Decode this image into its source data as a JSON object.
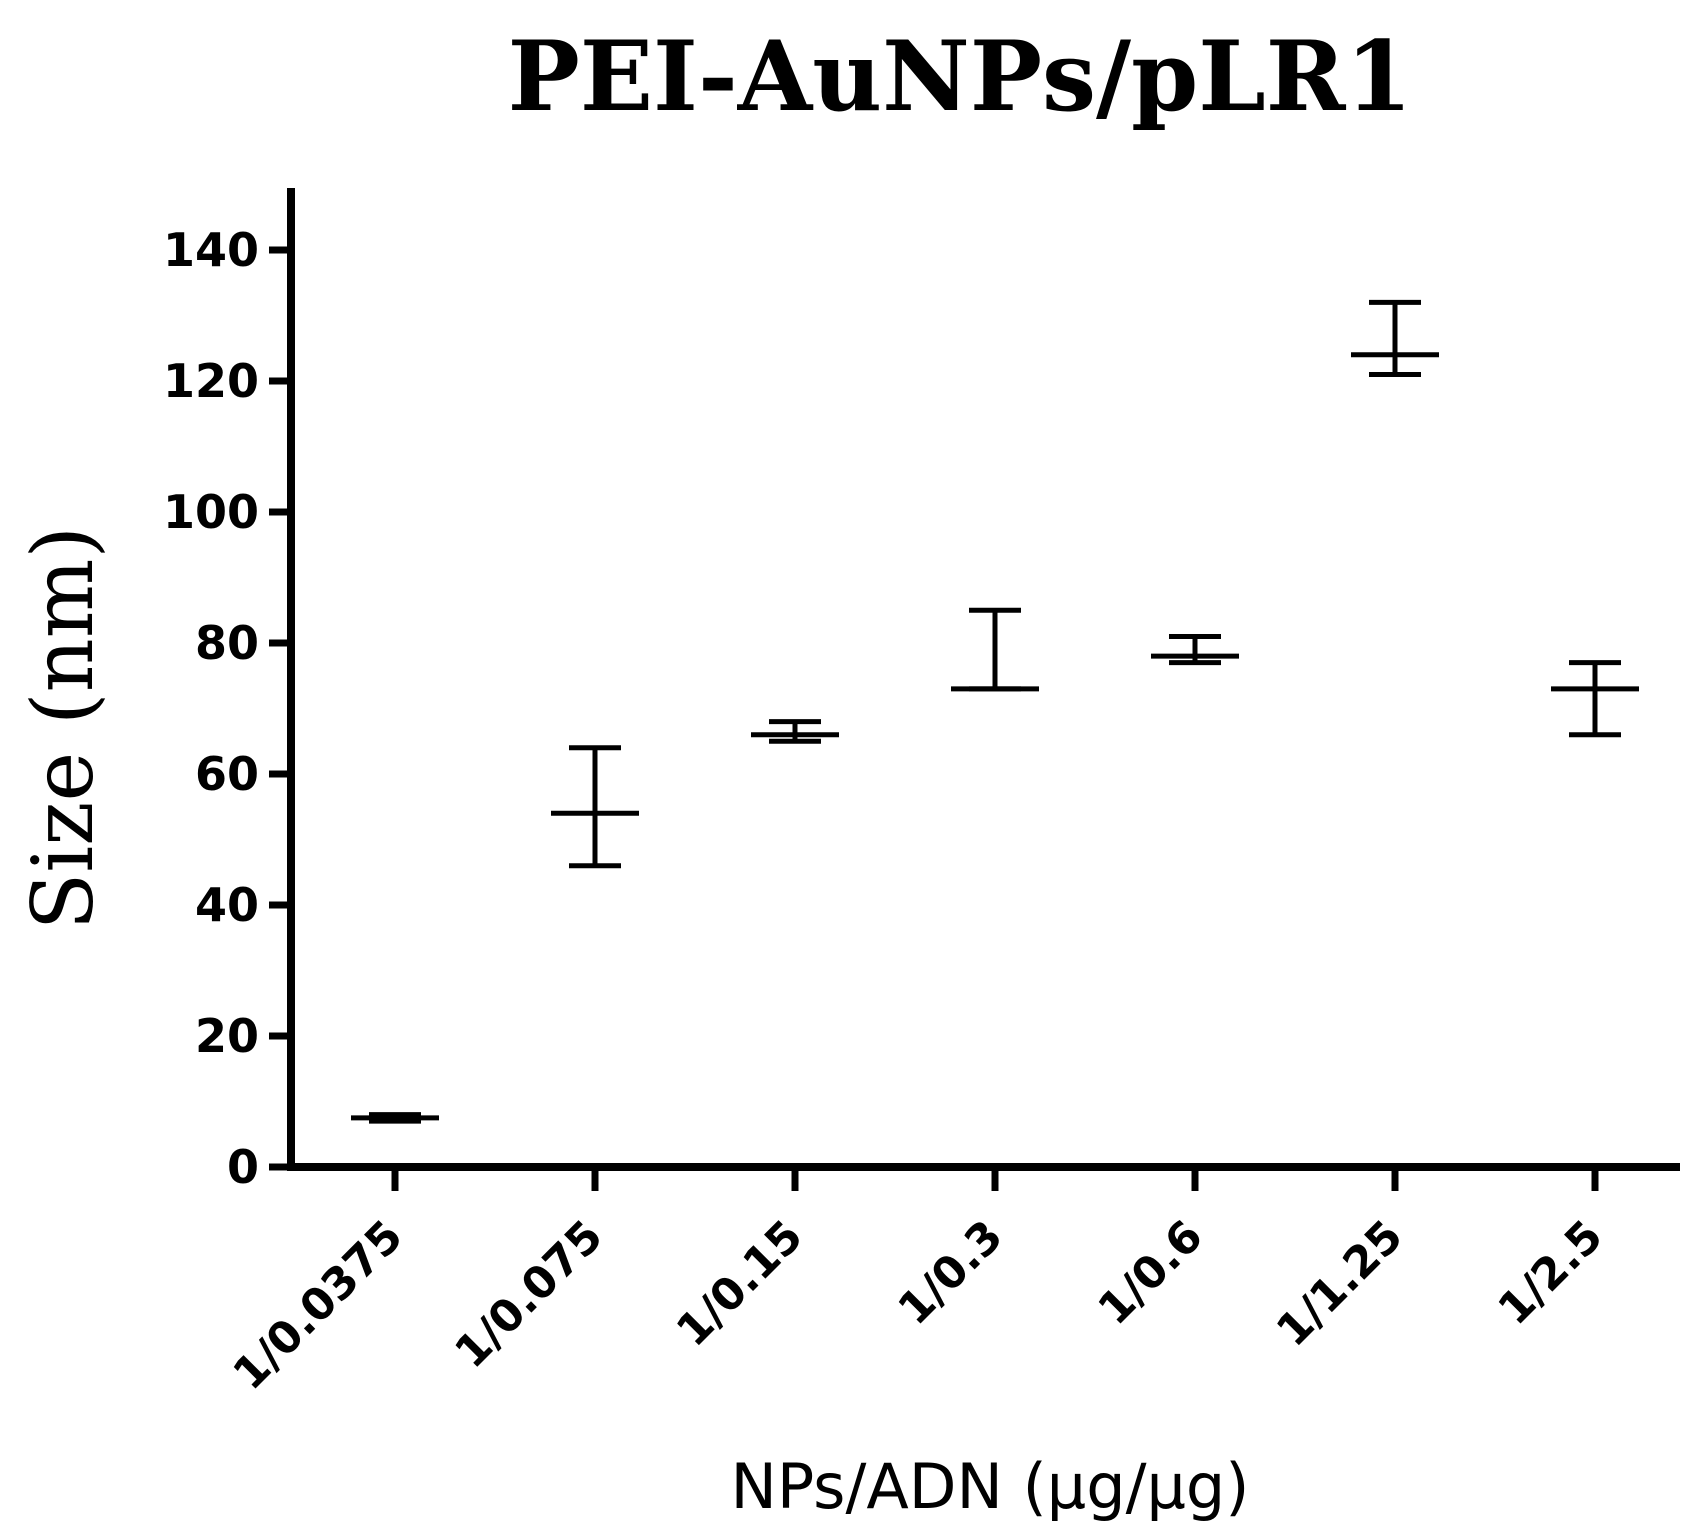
{
  "chart_data": {
    "type": "scatter",
    "title": "PEI-AuNPs/pLR1",
    "xlabel": "NPs/ADN (μg/μg)",
    "ylabel": "Size (nm)",
    "ylim": [
      0,
      150
    ],
    "yticks": [
      0,
      20,
      40,
      60,
      80,
      100,
      120,
      140
    ],
    "grid": false,
    "categories": [
      "1/0.0375",
      "1/0.075",
      "1/0.15",
      "1/0.3",
      "1/0.6",
      "1/1.25",
      "1/2.5"
    ],
    "series": [
      {
        "mean": [
          7.5,
          54,
          66,
          73,
          78,
          124,
          73
        ],
        "lower": [
          7,
          46,
          65,
          73,
          77,
          121,
          66
        ],
        "upper": [
          8,
          64,
          68,
          85,
          81,
          132,
          77
        ]
      }
    ],
    "color": "#000000"
  }
}
